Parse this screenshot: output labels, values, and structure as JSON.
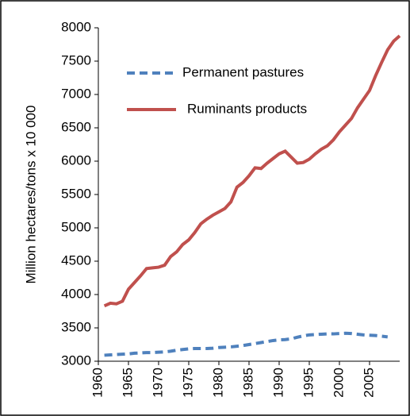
{
  "chart_data": {
    "type": "line",
    "y_label": "Million hectares/tons x 10 000",
    "x": [
      1961,
      1962,
      1963,
      1964,
      1965,
      1966,
      1967,
      1968,
      1969,
      1970,
      1971,
      1972,
      1973,
      1974,
      1975,
      1976,
      1977,
      1978,
      1979,
      1980,
      1981,
      1982,
      1983,
      1984,
      1985,
      1986,
      1987,
      1988,
      1989,
      1990,
      1991,
      1992,
      1993,
      1994,
      1995,
      1996,
      1997,
      1998,
      1999,
      2000,
      2001,
      2002,
      2003,
      2004,
      2005,
      2006,
      2007,
      2008,
      2009,
      2010
    ],
    "series": [
      {
        "name": "Permanent pastures",
        "color": "#4f81bd",
        "dash": true,
        "values": [
          3090,
          3095,
          3100,
          3105,
          3110,
          3120,
          3125,
          3130,
          3130,
          3135,
          3140,
          3150,
          3165,
          3175,
          3185,
          3190,
          3190,
          3190,
          3195,
          3205,
          3210,
          3215,
          3225,
          3235,
          3250,
          3265,
          3280,
          3295,
          3310,
          3320,
          3325,
          3335,
          3360,
          3380,
          3395,
          3400,
          3405,
          3410,
          3410,
          3415,
          3420,
          3415,
          3405,
          3395,
          3390,
          3385,
          3375,
          3365,
          null,
          null
        ]
      },
      {
        "name": "Ruminants products",
        "color": "#c0504d",
        "dash": false,
        "values": [
          3830,
          3870,
          3860,
          3900,
          4080,
          4180,
          4280,
          4390,
          4400,
          4410,
          4440,
          4570,
          4640,
          4750,
          4820,
          4930,
          5060,
          5130,
          5190,
          5240,
          5290,
          5390,
          5610,
          5680,
          5780,
          5900,
          5890,
          5970,
          6040,
          6110,
          6150,
          6060,
          5970,
          5980,
          6030,
          6110,
          6180,
          6230,
          6320,
          6440,
          6540,
          6640,
          6800,
          6930,
          7060,
          7280,
          7480,
          7670,
          7800,
          7880
        ]
      }
    ],
    "xlim": [
      1960,
      2010
    ],
    "xticks": [
      1960,
      1965,
      1970,
      1975,
      1980,
      1985,
      1990,
      1995,
      2000,
      2005
    ],
    "ylim": [
      3000,
      8000
    ],
    "yticks": [
      3000,
      3500,
      4000,
      4500,
      5000,
      5500,
      6000,
      6500,
      7000,
      7500,
      8000
    ],
    "legend": "top-left"
  }
}
